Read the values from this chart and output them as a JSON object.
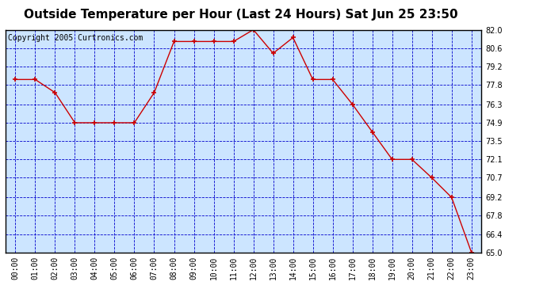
{
  "title": "Outside Temperature per Hour (Last 24 Hours) Sat Jun 25 23:50",
  "copyright": "Copyright 2005 Curtronics.com",
  "hours": [
    "00:00",
    "01:00",
    "02:00",
    "03:00",
    "04:00",
    "05:00",
    "06:00",
    "07:00",
    "08:00",
    "09:00",
    "10:00",
    "11:00",
    "12:00",
    "13:00",
    "14:00",
    "15:00",
    "16:00",
    "17:00",
    "18:00",
    "19:00",
    "20:00",
    "21:00",
    "22:00",
    "23:00"
  ],
  "temperatures": [
    78.2,
    78.2,
    77.2,
    74.9,
    74.9,
    74.9,
    74.9,
    77.2,
    81.1,
    81.1,
    81.1,
    81.1,
    82.0,
    80.2,
    81.4,
    78.2,
    78.2,
    76.3,
    74.2,
    72.1,
    72.1,
    70.7,
    69.2,
    65.0
  ],
  "line_color": "#cc0000",
  "marker_color": "#cc0000",
  "fig_bg_color": "#ffffff",
  "plot_bg_color": "#cce5ff",
  "grid_color": "#0000cc",
  "axis_label_color": "#000000",
  "title_color": "#000000",
  "ylim_min": 65.0,
  "ylim_max": 82.0,
  "yticks": [
    65.0,
    66.4,
    67.8,
    69.2,
    70.7,
    72.1,
    73.5,
    74.9,
    76.3,
    77.8,
    79.2,
    80.6,
    82.0
  ],
  "title_fontsize": 11,
  "copyright_fontsize": 7,
  "tick_fontsize": 7,
  "border_color": "#000000"
}
